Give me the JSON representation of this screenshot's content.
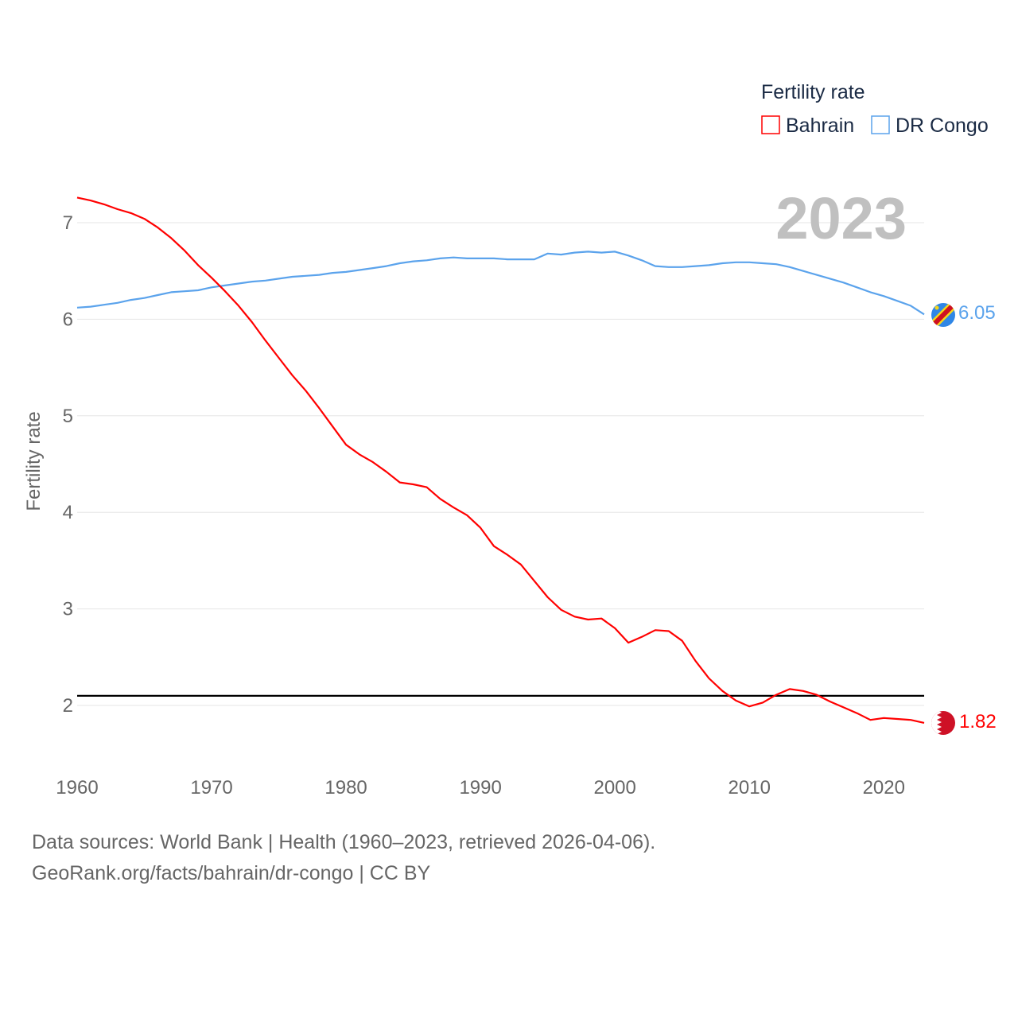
{
  "chart_data": {
    "type": "line",
    "year_label": "2023",
    "ylabel": "Fertility rate",
    "xlabel": "",
    "legend_title": "Fertility rate",
    "legend_position": "top-right",
    "ylim": [
      1.3,
      7.6
    ],
    "xlim": [
      1960,
      2023
    ],
    "yticks": [
      "2",
      "3",
      "4",
      "5",
      "6",
      "7"
    ],
    "xticks": [
      "1960",
      "1970",
      "1980",
      "1990",
      "2000",
      "2010",
      "2020"
    ],
    "reference_line": 2.1,
    "x": [
      1960,
      1961,
      1962,
      1963,
      1964,
      1965,
      1966,
      1967,
      1968,
      1969,
      1970,
      1971,
      1972,
      1973,
      1974,
      1975,
      1976,
      1977,
      1978,
      1979,
      1980,
      1981,
      1982,
      1983,
      1984,
      1985,
      1986,
      1987,
      1988,
      1989,
      1990,
      1991,
      1992,
      1993,
      1994,
      1995,
      1996,
      1997,
      1998,
      1999,
      2000,
      2001,
      2002,
      2003,
      2004,
      2005,
      2006,
      2007,
      2008,
      2009,
      2010,
      2011,
      2012,
      2013,
      2014,
      2015,
      2016,
      2017,
      2018,
      2019,
      2020,
      2021,
      2022,
      2023
    ],
    "series": [
      {
        "name": "Bahrain",
        "color": "#ff0000",
        "end_label": "1.82",
        "values": [
          7.26,
          7.23,
          7.19,
          7.14,
          7.1,
          7.04,
          6.95,
          6.84,
          6.71,
          6.56,
          6.43,
          6.29,
          6.14,
          5.97,
          5.78,
          5.6,
          5.42,
          5.26,
          5.08,
          4.89,
          4.7,
          4.6,
          4.52,
          4.42,
          4.31,
          4.29,
          4.26,
          4.14,
          4.05,
          3.97,
          3.84,
          3.65,
          3.56,
          3.46,
          3.29,
          3.12,
          2.99,
          2.92,
          2.89,
          2.9,
          2.8,
          2.65,
          2.71,
          2.78,
          2.77,
          2.67,
          2.46,
          2.28,
          2.15,
          2.05,
          1.99,
          2.03,
          2.11,
          2.17,
          2.15,
          2.11,
          2.04,
          1.98,
          1.92,
          1.85,
          1.87,
          1.86,
          1.85,
          1.82
        ]
      },
      {
        "name": "DR Congo",
        "color": "#5ba3ec",
        "end_label": "6.05",
        "values": [
          6.12,
          6.13,
          6.15,
          6.17,
          6.2,
          6.22,
          6.25,
          6.28,
          6.29,
          6.3,
          6.33,
          6.35,
          6.37,
          6.39,
          6.4,
          6.42,
          6.44,
          6.45,
          6.46,
          6.48,
          6.49,
          6.51,
          6.53,
          6.55,
          6.58,
          6.6,
          6.61,
          6.63,
          6.64,
          6.63,
          6.63,
          6.63,
          6.62,
          6.62,
          6.62,
          6.68,
          6.67,
          6.69,
          6.7,
          6.69,
          6.7,
          6.66,
          6.61,
          6.55,
          6.54,
          6.54,
          6.55,
          6.56,
          6.58,
          6.59,
          6.59,
          6.58,
          6.57,
          6.54,
          6.5,
          6.46,
          6.42,
          6.38,
          6.33,
          6.28,
          6.24,
          6.19,
          6.14,
          6.05
        ]
      }
    ]
  },
  "footer": {
    "line1": "Data sources: World Bank | Health (1960–2023, retrieved 2026-04-06).",
    "line2": "GeoRank.org/facts/bahrain/dr-congo | CC BY"
  }
}
